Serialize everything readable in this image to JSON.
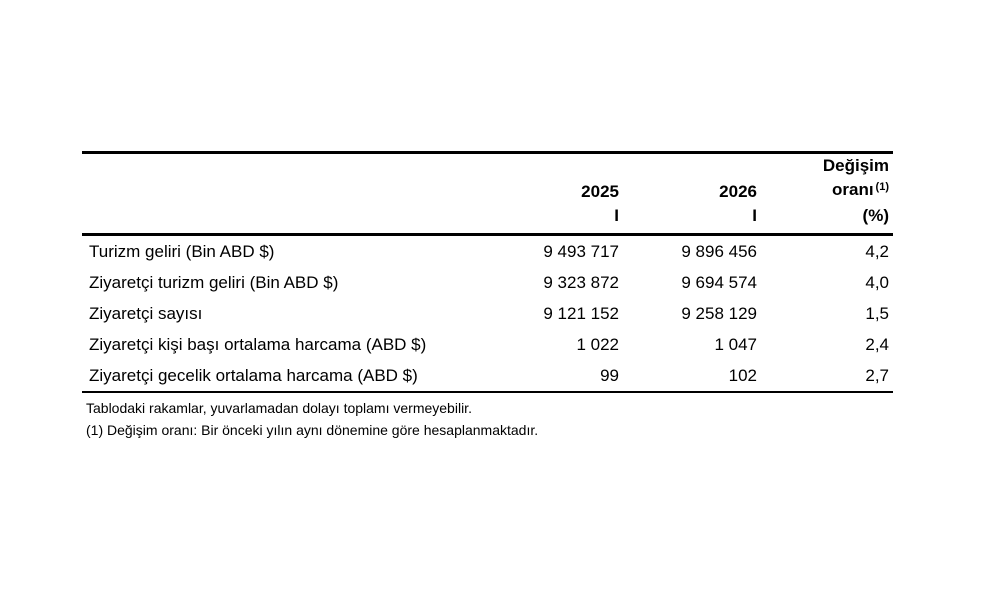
{
  "chart_data": {
    "type": "table",
    "header": {
      "year_2025": "2025",
      "period_2025": "I",
      "year_2026": "2026",
      "period_2026": "I",
      "change_title": "Değişim",
      "change_subtitle": "oranı",
      "change_footnote_ref": "(1)",
      "change_unit": "(%)"
    },
    "columns": [
      "",
      "2025 I",
      "2026 I",
      "Değişim oranı (1) (%)"
    ],
    "rows": [
      {
        "label": "Turizm geliri (Bin ABD $)",
        "y2025": "9 493 717",
        "y2026": "9 896 456",
        "change": "4,2"
      },
      {
        "label": "Ziyaretçi turizm geliri (Bin ABD $)",
        "y2025": "9 323 872",
        "y2026": "9 694 574",
        "change": "4,0"
      },
      {
        "label": "Ziyaretçi sayısı",
        "y2025": "9 121 152",
        "y2026": "9 258 129",
        "change": "1,5"
      },
      {
        "label": "Ziyaretçi kişi başı ortalama harcama (ABD $)",
        "y2025": "1 022",
        "y2026": "1 047",
        "change": "2,4"
      },
      {
        "label": "Ziyaretçi gecelik ortalama harcama (ABD $)",
        "y2025": "99",
        "y2026": "102",
        "change": "2,7"
      }
    ],
    "footnotes": [
      "Tablodaki rakamlar, yuvarlamadan dolayı toplamı vermeyebilir.",
      "(1) Değişim oranı: Bir önceki yılın aynı dönemine göre hesaplanmaktadır."
    ]
  },
  "colors": {
    "background": "#ffffff",
    "text": "#000000",
    "rule": "#000000"
  }
}
